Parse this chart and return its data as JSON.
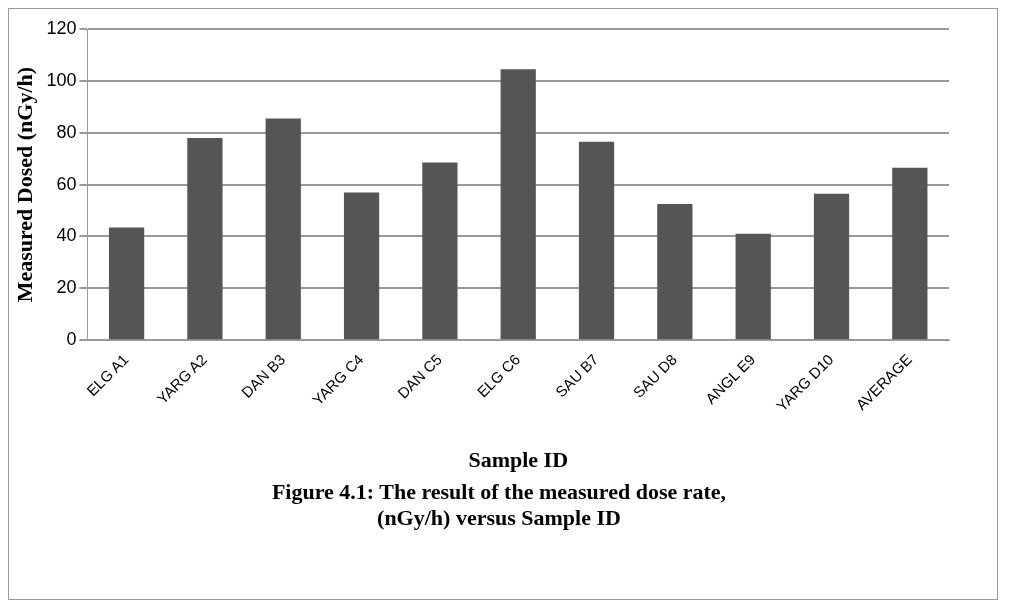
{
  "chart_data": {
    "type": "bar",
    "xlabel": "Sample ID",
    "ylabel": "Measured Dosed (nGy/h)",
    "annotations": [
      "Figure 4.1: The result of the measured dose rate, (nGy/h) versus Sample ID"
    ],
    "categories": [
      "ELG A1",
      "YARG A2",
      "DAN B3",
      "YARG C4",
      "DAN C5",
      "ELG C6",
      "SAU B7",
      "SAU D8",
      "ANGL E9",
      "YARG D10",
      "AVERAGE"
    ],
    "values": [
      43.5,
      78,
      85.5,
      57,
      68.5,
      104.5,
      76.5,
      52.5,
      41,
      56.5,
      66.5
    ],
    "color": "#555555",
    "ylim": [
      0,
      120
    ],
    "yticks": [
      0,
      20,
      40,
      60,
      80,
      100,
      120
    ],
    "grid": "y",
    "legend": false
  }
}
